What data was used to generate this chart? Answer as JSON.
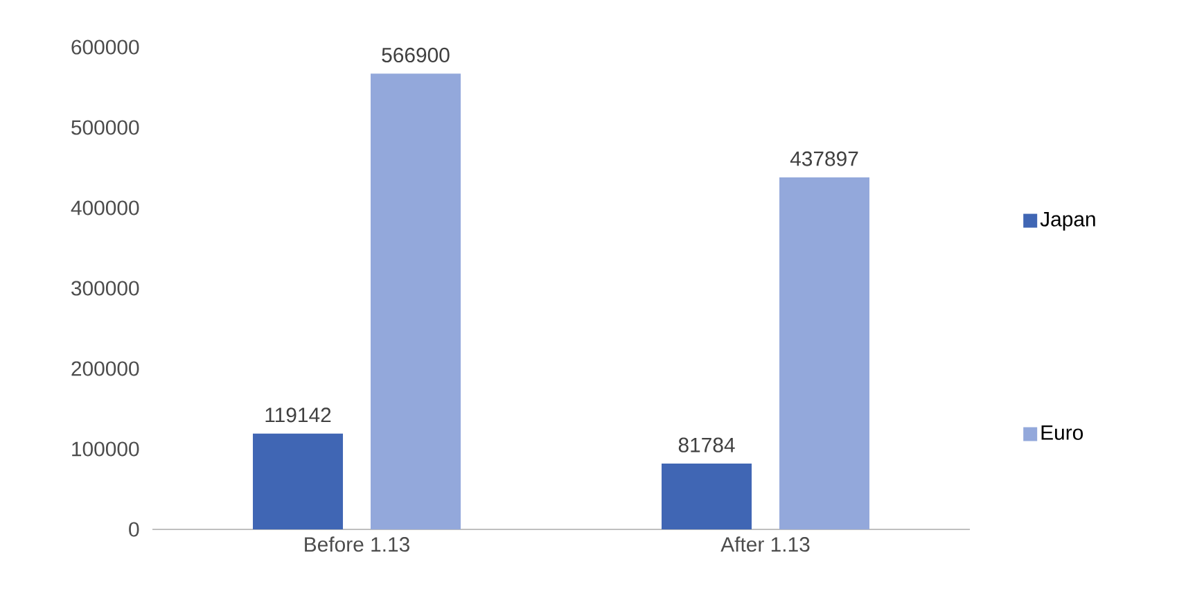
{
  "chart_data": {
    "type": "bar",
    "categories": [
      "Before 1.13",
      "After 1.13"
    ],
    "series": [
      {
        "name": "Japan",
        "color": "#4066b4",
        "values": [
          119142,
          81784
        ]
      },
      {
        "name": "Euro",
        "color": "#93a8db",
        "values": [
          566900,
          437897
        ]
      }
    ],
    "ylim": [
      0,
      600000
    ],
    "yticks": [
      0,
      100000,
      200000,
      300000,
      400000,
      500000,
      600000
    ],
    "data_labels": true,
    "legend": "right"
  }
}
